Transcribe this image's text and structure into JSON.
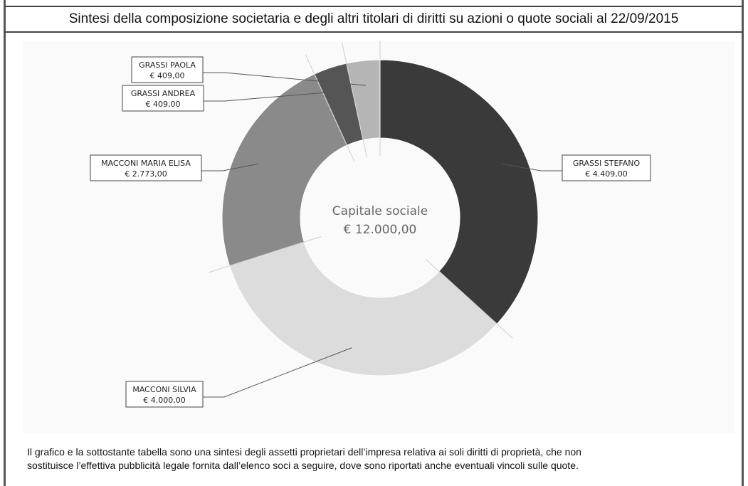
{
  "header": {
    "title": "Sintesi della composizione societaria e degli altri titolari di diritti su azioni o quote sociali al 22/09/2015"
  },
  "chart_data": {
    "type": "pie",
    "style": "donut",
    "center_label": {
      "line1": "Capitale sociale",
      "line2": "€ 12.000,00"
    },
    "total": 12000,
    "slices": [
      {
        "name": "GRASSI STEFANO",
        "value": 4409,
        "value_label": "€ 4.409,00",
        "color": "#3a3a3a"
      },
      {
        "name": "MACCONI SILVIA",
        "value": 4000,
        "value_label": "€ 4.000,00",
        "color": "#dcdcdc"
      },
      {
        "name": "MACCONI MARIA ELISA",
        "value": 2773,
        "value_label": "€ 2.773,00",
        "color": "#8a8a8a"
      },
      {
        "name": "GRASSI ANDREA",
        "value": 409,
        "value_label": "€ 409,00",
        "color": "#555555"
      },
      {
        "name": "GRASSI PAOLA",
        "value": 409,
        "value_label": "€ 409,00",
        "color": "#b5b5b5"
      }
    ]
  },
  "footnote": {
    "line1": "Il grafico e la sottostante tabella sono una sintesi degli assetti proprietari dell’impresa relativa ai soli diritti di proprietà, che non",
    "line2": "sostituisce l’effettiva pubblicità legale fornita dall’elenco soci a seguire, dove sono riportati anche eventuali vincoli sulle quote."
  }
}
